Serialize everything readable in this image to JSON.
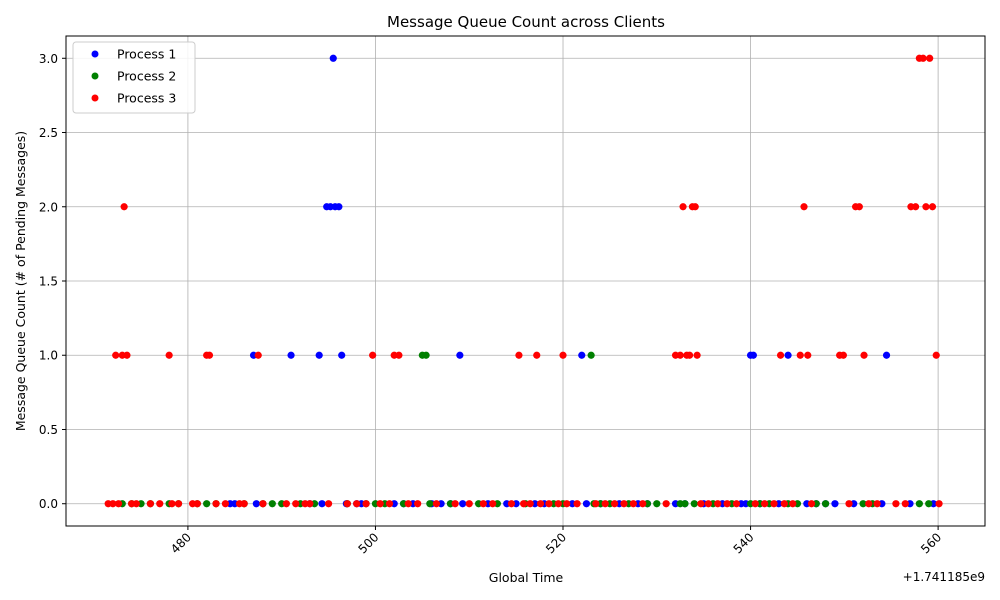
{
  "chart_data": {
    "type": "scatter",
    "title": "Message Queue Count across Clients",
    "xlabel": "Global Time",
    "ylabel": "Message Queue Count (# of Pending Messages)",
    "x_offset_label": "+1.741185e9",
    "xlim": [
      467,
      565
    ],
    "ylim": [
      -0.15,
      3.15
    ],
    "xticks": [
      480,
      500,
      520,
      540,
      560
    ],
    "yticks": [
      0.0,
      0.5,
      1.0,
      1.5,
      2.0,
      2.5,
      3.0
    ],
    "xtick_labels": [
      "480",
      "500",
      "520",
      "540",
      "560"
    ],
    "ytick_labels": [
      "0.0",
      "0.5",
      "1.0",
      "1.5",
      "2.0",
      "2.5",
      "3.0"
    ],
    "grid": true,
    "legend_position": "top-left",
    "series": [
      {
        "name": "Process 1",
        "color": "#0000ff",
        "points": [
          [
            484.5,
            0
          ],
          [
            485,
            0
          ],
          [
            487,
            1
          ],
          [
            487.3,
            0
          ],
          [
            491,
            1
          ],
          [
            493,
            0
          ],
          [
            494,
            1
          ],
          [
            494.3,
            0
          ],
          [
            494.8,
            2
          ],
          [
            495.2,
            2
          ],
          [
            495.5,
            3
          ],
          [
            495.7,
            2
          ],
          [
            496.1,
            2
          ],
          [
            496.4,
            1
          ],
          [
            496.9,
            0
          ],
          [
            498,
            0
          ],
          [
            498.5,
            0
          ],
          [
            502,
            0
          ],
          [
            503,
            0
          ],
          [
            504,
            0
          ],
          [
            506,
            0
          ],
          [
            507,
            0
          ],
          [
            508,
            0
          ],
          [
            509,
            1
          ],
          [
            509.3,
            0
          ],
          [
            512,
            0
          ],
          [
            514,
            0
          ],
          [
            515,
            0
          ],
          [
            517,
            0
          ],
          [
            518,
            0
          ],
          [
            521,
            0
          ],
          [
            522,
            1
          ],
          [
            522.5,
            0
          ],
          [
            524,
            0
          ],
          [
            526,
            0
          ],
          [
            528,
            0
          ],
          [
            529,
            0
          ],
          [
            532,
            0
          ],
          [
            533,
            0
          ],
          [
            535,
            0
          ],
          [
            537,
            0
          ],
          [
            539,
            0
          ],
          [
            539.5,
            0
          ],
          [
            540,
            1
          ],
          [
            540.3,
            1
          ],
          [
            541,
            0
          ],
          [
            543,
            0
          ],
          [
            544,
            1
          ],
          [
            546,
            0
          ],
          [
            547,
            0
          ],
          [
            548,
            0
          ],
          [
            549,
            0
          ],
          [
            551,
            0
          ],
          [
            554,
            0
          ],
          [
            554.5,
            1
          ],
          [
            557,
            0
          ],
          [
            559.5,
            0
          ]
        ]
      },
      {
        "name": "Process 2",
        "color": "#008000",
        "points": [
          [
            473,
            0
          ],
          [
            474,
            0
          ],
          [
            475,
            0
          ],
          [
            476,
            0
          ],
          [
            478,
            0
          ],
          [
            479,
            0
          ],
          [
            481,
            0
          ],
          [
            482,
            0
          ],
          [
            483,
            0
          ],
          [
            486,
            0
          ],
          [
            488,
            0
          ],
          [
            489,
            0
          ],
          [
            490,
            0
          ],
          [
            492,
            0
          ],
          [
            493.5,
            0
          ],
          [
            497,
            0
          ],
          [
            499,
            0
          ],
          [
            500,
            0
          ],
          [
            501,
            0
          ],
          [
            503,
            0
          ],
          [
            505,
            1
          ],
          [
            505.4,
            1
          ],
          [
            505.8,
            0
          ],
          [
            508,
            0
          ],
          [
            511,
            0
          ],
          [
            513,
            0
          ],
          [
            516,
            0
          ],
          [
            519,
            0
          ],
          [
            520,
            0
          ],
          [
            523,
            1
          ],
          [
            523.3,
            0
          ],
          [
            524,
            0
          ],
          [
            525,
            0
          ],
          [
            527,
            0
          ],
          [
            529,
            0
          ],
          [
            530,
            0
          ],
          [
            532.5,
            0
          ],
          [
            533,
            0
          ],
          [
            534,
            0
          ],
          [
            536,
            0
          ],
          [
            538,
            0
          ],
          [
            540,
            0
          ],
          [
            541,
            0
          ],
          [
            542,
            0
          ],
          [
            544,
            0
          ],
          [
            545,
            0
          ],
          [
            547,
            0
          ],
          [
            548,
            0
          ],
          [
            552,
            0
          ],
          [
            553,
            0
          ],
          [
            558,
            0
          ],
          [
            559,
            0
          ]
        ]
      },
      {
        "name": "Process 3",
        "color": "#ff0000",
        "points": [
          [
            471.5,
            0
          ],
          [
            472,
            0
          ],
          [
            472.3,
            1
          ],
          [
            472.6,
            0
          ],
          [
            473,
            1
          ],
          [
            473.2,
            2
          ],
          [
            473.5,
            1
          ],
          [
            474,
            0
          ],
          [
            474.5,
            0
          ],
          [
            476,
            0
          ],
          [
            477,
            0
          ],
          [
            478,
            1
          ],
          [
            478.3,
            0
          ],
          [
            479,
            0
          ],
          [
            480.5,
            0
          ],
          [
            481,
            0
          ],
          [
            482,
            1
          ],
          [
            482.3,
            1
          ],
          [
            483,
            0
          ],
          [
            484,
            0
          ],
          [
            485.5,
            0
          ],
          [
            486,
            0
          ],
          [
            487.5,
            1
          ],
          [
            488,
            0
          ],
          [
            490.5,
            0
          ],
          [
            491.5,
            0
          ],
          [
            492.5,
            0
          ],
          [
            493,
            0
          ],
          [
            495,
            0
          ],
          [
            497,
            0
          ],
          [
            498,
            0
          ],
          [
            499,
            0
          ],
          [
            499.7,
            1
          ],
          [
            500.5,
            0
          ],
          [
            501.5,
            0
          ],
          [
            502,
            1
          ],
          [
            502.5,
            1
          ],
          [
            503.5,
            0
          ],
          [
            504.5,
            0
          ],
          [
            506.5,
            0
          ],
          [
            508.5,
            0
          ],
          [
            510,
            0
          ],
          [
            511.5,
            0
          ],
          [
            512.5,
            0
          ],
          [
            514.5,
            0
          ],
          [
            515.3,
            1
          ],
          [
            515.8,
            0
          ],
          [
            516.5,
            0
          ],
          [
            517.2,
            1
          ],
          [
            517.6,
            0
          ],
          [
            518.5,
            0
          ],
          [
            519.5,
            0
          ],
          [
            520,
            1
          ],
          [
            520.4,
            0
          ],
          [
            521.5,
            0
          ],
          [
            523.5,
            0
          ],
          [
            524.5,
            0
          ],
          [
            525.5,
            0
          ],
          [
            526.5,
            0
          ],
          [
            527.5,
            0
          ],
          [
            528.5,
            0
          ],
          [
            531,
            0
          ],
          [
            532,
            1
          ],
          [
            532.5,
            1
          ],
          [
            532.8,
            2
          ],
          [
            533.2,
            1
          ],
          [
            533.5,
            1
          ],
          [
            533.8,
            2
          ],
          [
            534.1,
            2
          ],
          [
            534.3,
            1
          ],
          [
            534.7,
            0
          ],
          [
            535.5,
            0
          ],
          [
            536.5,
            0
          ],
          [
            537.5,
            0
          ],
          [
            538.5,
            0
          ],
          [
            540.5,
            0
          ],
          [
            541.5,
            0
          ],
          [
            542.5,
            0
          ],
          [
            543.2,
            1
          ],
          [
            543.6,
            0
          ],
          [
            544.5,
            0
          ],
          [
            545.3,
            1
          ],
          [
            545.7,
            2
          ],
          [
            546.1,
            1
          ],
          [
            546.5,
            0
          ],
          [
            549.5,
            1
          ],
          [
            549.9,
            1
          ],
          [
            550.5,
            0
          ],
          [
            551.2,
            2
          ],
          [
            551.6,
            2
          ],
          [
            552.1,
            1
          ],
          [
            552.6,
            0
          ],
          [
            553.5,
            0
          ],
          [
            555.5,
            0
          ],
          [
            556.5,
            0
          ],
          [
            557.1,
            2
          ],
          [
            557.6,
            2
          ],
          [
            558,
            3
          ],
          [
            558.4,
            3
          ],
          [
            558.7,
            2
          ],
          [
            559.1,
            3
          ],
          [
            559.4,
            2
          ],
          [
            559.8,
            1
          ],
          [
            560.1,
            0
          ]
        ]
      }
    ]
  }
}
